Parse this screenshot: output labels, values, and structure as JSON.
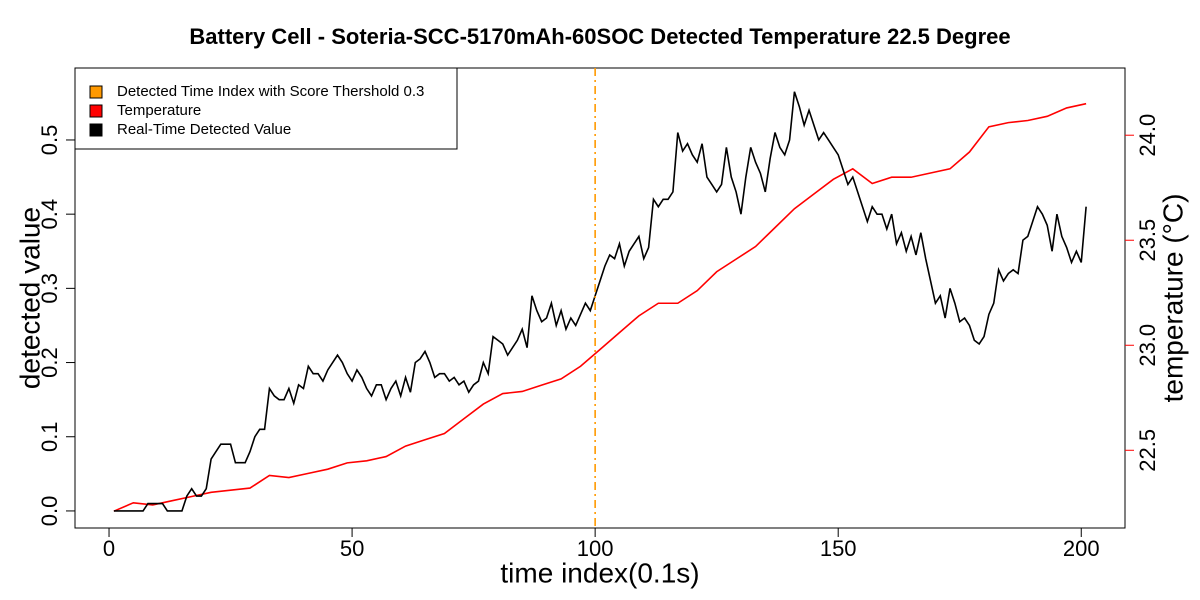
{
  "chart_data": {
    "type": "line",
    "title": "Battery Cell - Soteria-SCC-5170mAh-60SOC Detected Temperature 22.5 Degree",
    "xlabel": "time index(0.1s)",
    "ylabel": "detected value",
    "y2label": "temperature (°C)",
    "y2color": "#ff0000",
    "xlim": [
      -7,
      209
    ],
    "ylim": [
      -0.023,
      0.597
    ],
    "y2lim": [
      22.13,
      24.32
    ],
    "xticks": [
      0,
      50,
      100,
      150,
      200
    ],
    "yticks": [
      {
        "value": 0,
        "label": "0.0"
      },
      0.1,
      0.2,
      0.3,
      0.4,
      0.5
    ],
    "y2ticks": [
      22.5,
      {
        "value": 23,
        "label": "23.0"
      },
      23.5,
      {
        "value": 24,
        "label": "24.0"
      }
    ],
    "legend": "top-left",
    "vline": {
      "name": "Detected Time Index with Score Thershold 0.3",
      "x": 100,
      "color": "#ff9900"
    },
    "x": [
      1,
      2,
      3,
      4,
      5,
      6,
      7,
      8,
      9,
      10,
      11,
      12,
      13,
      14,
      15,
      16,
      17,
      18,
      19,
      20,
      21,
      22,
      23,
      24,
      25,
      26,
      27,
      28,
      29,
      30,
      31,
      32,
      33,
      34,
      35,
      36,
      37,
      38,
      39,
      40,
      41,
      42,
      43,
      44,
      45,
      46,
      47,
      48,
      49,
      50,
      51,
      52,
      53,
      54,
      55,
      56,
      57,
      58,
      59,
      60,
      61,
      62,
      63,
      64,
      65,
      66,
      67,
      68,
      69,
      70,
      71,
      72,
      73,
      74,
      75,
      76,
      77,
      78,
      79,
      80,
      81,
      82,
      83,
      84,
      85,
      86,
      87,
      88,
      89,
      90,
      91,
      92,
      93,
      94,
      95,
      96,
      97,
      98,
      99,
      100,
      101,
      102,
      103,
      104,
      105,
      106,
      107,
      108,
      109,
      110,
      111,
      112,
      113,
      114,
      115,
      116,
      117,
      118,
      119,
      120,
      121,
      122,
      123,
      124,
      125,
      126,
      127,
      128,
      129,
      130,
      131,
      132,
      133,
      134,
      135,
      136,
      137,
      138,
      139,
      140,
      141,
      142,
      143,
      144,
      145,
      146,
      147,
      148,
      149,
      150,
      151,
      152,
      153,
      154,
      155,
      156,
      157,
      158,
      159,
      160,
      161,
      162,
      163,
      164,
      165,
      166,
      167,
      168,
      169,
      170,
      171,
      172,
      173,
      174,
      175,
      176,
      177,
      178,
      179,
      180,
      181,
      182,
      183,
      184,
      185,
      186,
      187,
      188,
      189,
      190,
      191,
      192,
      193,
      194,
      195,
      196,
      197,
      198,
      199,
      200,
      201
    ],
    "series": [
      {
        "name": "Temperature",
        "color": "#ff0000",
        "axis": "y2",
        "x": [
          1,
          5,
          9,
          13,
          17,
          21,
          25,
          29,
          33,
          37,
          41,
          45,
          49,
          53,
          57,
          61,
          65,
          69,
          73,
          77,
          81,
          85,
          89,
          93,
          97,
          101,
          105,
          109,
          113,
          117,
          121,
          125,
          129,
          133,
          137,
          141,
          145,
          149,
          153,
          157,
          161,
          165,
          169,
          173,
          177,
          181,
          185,
          189,
          193,
          197,
          201
        ],
        "values": [
          22.21,
          22.25,
          22.24,
          22.26,
          22.28,
          22.3,
          22.31,
          22.32,
          22.38,
          22.37,
          22.39,
          22.41,
          22.44,
          22.45,
          22.47,
          22.52,
          22.55,
          22.58,
          22.65,
          22.72,
          22.77,
          22.78,
          22.81,
          22.84,
          22.9,
          22.98,
          23.06,
          23.14,
          23.2,
          23.2,
          23.26,
          23.35,
          23.41,
          23.47,
          23.56,
          23.65,
          23.72,
          23.79,
          23.84,
          23.77,
          23.8,
          23.8,
          23.82,
          23.84,
          23.92,
          24.04,
          24.06,
          24.07,
          24.09,
          24.13,
          24.15
        ]
      },
      {
        "name": "Real-Time Detected Value",
        "color": "#000000",
        "values": [
          0,
          0,
          0,
          0,
          0,
          0,
          0,
          0.01,
          0.01,
          0.01,
          0.01,
          0,
          0,
          0,
          0,
          0.02,
          0.03,
          0.02,
          0.02,
          0.03,
          0.07,
          0.08,
          0.09,
          0.09,
          0.09,
          0.065,
          0.065,
          0.065,
          0.08,
          0.1,
          0.11,
          0.11,
          0.165,
          0.155,
          0.15,
          0.15,
          0.165,
          0.145,
          0.17,
          0.165,
          0.195,
          0.185,
          0.185,
          0.175,
          0.19,
          0.2,
          0.21,
          0.2,
          0.185,
          0.175,
          0.19,
          0.18,
          0.165,
          0.155,
          0.17,
          0.17,
          0.15,
          0.165,
          0.175,
          0.155,
          0.18,
          0.16,
          0.2,
          0.205,
          0.215,
          0.2,
          0.18,
          0.185,
          0.185,
          0.175,
          0.18,
          0.17,
          0.175,
          0.16,
          0.17,
          0.175,
          0.2,
          0.185,
          0.235,
          0.23,
          0.225,
          0.21,
          0.22,
          0.23,
          0.245,
          0.22,
          0.29,
          0.27,
          0.255,
          0.26,
          0.28,
          0.25,
          0.27,
          0.245,
          0.26,
          0.25,
          0.265,
          0.28,
          0.27,
          0.29,
          0.31,
          0.33,
          0.345,
          0.34,
          0.36,
          0.33,
          0.35,
          0.36,
          0.37,
          0.34,
          0.355,
          0.42,
          0.41,
          0.42,
          0.42,
          0.43,
          0.51,
          0.485,
          0.495,
          0.48,
          0.47,
          0.495,
          0.45,
          0.44,
          0.43,
          0.44,
          0.49,
          0.45,
          0.43,
          0.4,
          0.45,
          0.49,
          0.47,
          0.455,
          0.43,
          0.475,
          0.51,
          0.49,
          0.48,
          0.5,
          0.565,
          0.545,
          0.52,
          0.54,
          0.52,
          0.5,
          0.51,
          0.5,
          0.49,
          0.48,
          0.46,
          0.44,
          0.45,
          0.43,
          0.41,
          0.39,
          0.41,
          0.4,
          0.4,
          0.38,
          0.4,
          0.36,
          0.375,
          0.35,
          0.37,
          0.345,
          0.375,
          0.34,
          0.31,
          0.28,
          0.29,
          0.26,
          0.3,
          0.28,
          0.255,
          0.26,
          0.25,
          0.23,
          0.225,
          0.235,
          0.265,
          0.28,
          0.325,
          0.31,
          0.32,
          0.325,
          0.32,
          0.365,
          0.37,
          0.39,
          0.41,
          0.4,
          0.385,
          0.35,
          0.4,
          0.37,
          0.355,
          0.335,
          0.35,
          0.335,
          0.41
        ]
      }
    ]
  }
}
